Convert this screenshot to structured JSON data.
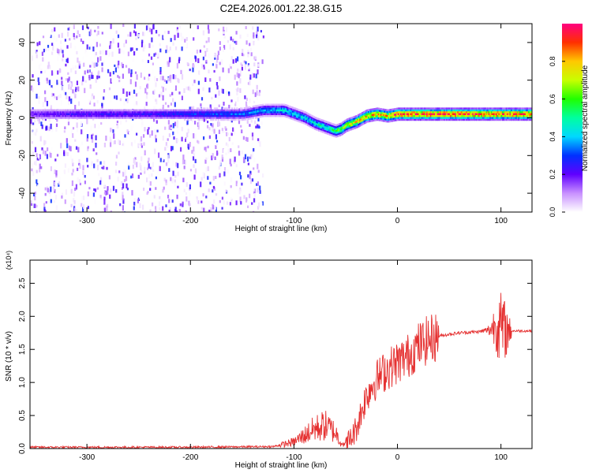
{
  "title": "C2E4.2026.001.22.38.G15",
  "chart_data": [
    {
      "type": "heatmap",
      "xlabel": "Height of straight line (km)",
      "ylabel": "Frequency (Hz)",
      "xlim": [
        -355,
        130
      ],
      "ylim": [
        -50,
        50
      ],
      "xticks": [
        -300,
        -200,
        -100,
        0,
        100
      ],
      "yticks": [
        -40,
        -20,
        0,
        20,
        40
      ],
      "colorbar": {
        "label": "Normalized spectral amplitude",
        "range": [
          0,
          1
        ],
        "ticks": [
          "0.0",
          "0.2",
          "0.4",
          "0.6",
          "0.8"
        ]
      },
      "ridge": {
        "x": [
          -355,
          -300,
          -250,
          -200,
          -150,
          -130,
          -110,
          -100,
          -90,
          -80,
          -70,
          -60,
          -55,
          -50,
          -40,
          -30,
          -20,
          -10,
          0,
          20,
          50,
          80,
          100,
          130
        ],
        "y": [
          2,
          2,
          2,
          2,
          2,
          4,
          4,
          2,
          0,
          -3,
          -5,
          -7,
          -6,
          -4,
          -2,
          1,
          2,
          1,
          2,
          2,
          2,
          2,
          2,
          2
        ],
        "amplitude": [
          0.2,
          0.25,
          0.25,
          0.3,
          0.35,
          0.4,
          0.45,
          0.45,
          0.45,
          0.5,
          0.5,
          0.6,
          0.7,
          0.75,
          0.8,
          0.85,
          0.85,
          0.85,
          0.95,
          0.98,
          0.98,
          0.98,
          0.95,
          0.95
        ]
      }
    },
    {
      "type": "line",
      "xlabel": "Height of straight line (km)",
      "ylabel": "SNR (10 * v/v)",
      "yscale_label": "(x10⁴)",
      "xlim": [
        -355,
        130
      ],
      "ylim": [
        0,
        2.85
      ],
      "xticks": [
        -300,
        -200,
        -100,
        0,
        100
      ],
      "yticks": [
        "0.0",
        "0.5",
        "1.0",
        "1.5",
        "2.0",
        "2.5"
      ],
      "series": [
        {
          "name": "SNR",
          "color": "#e53030",
          "x": [
            -355,
            -200,
            -120,
            -100,
            -90,
            -80,
            -70,
            -60,
            -55,
            -50,
            -45,
            -40,
            -35,
            -30,
            -25,
            -20,
            -10,
            0,
            10,
            20,
            30,
            40,
            50,
            60,
            70,
            80,
            90,
            95,
            100,
            105,
            110,
            120,
            130
          ],
          "y": [
            0.02,
            0.02,
            0.03,
            0.1,
            0.2,
            0.3,
            0.35,
            0.25,
            0.1,
            0.05,
            0.15,
            0.3,
            0.55,
            0.8,
            0.95,
            1.05,
            1.2,
            1.3,
            1.4,
            1.55,
            1.65,
            1.7,
            1.73,
            1.75,
            1.76,
            1.77,
            1.8,
            1.9,
            1.8,
            1.78,
            1.78,
            1.78,
            1.78
          ]
        }
      ]
    }
  ]
}
